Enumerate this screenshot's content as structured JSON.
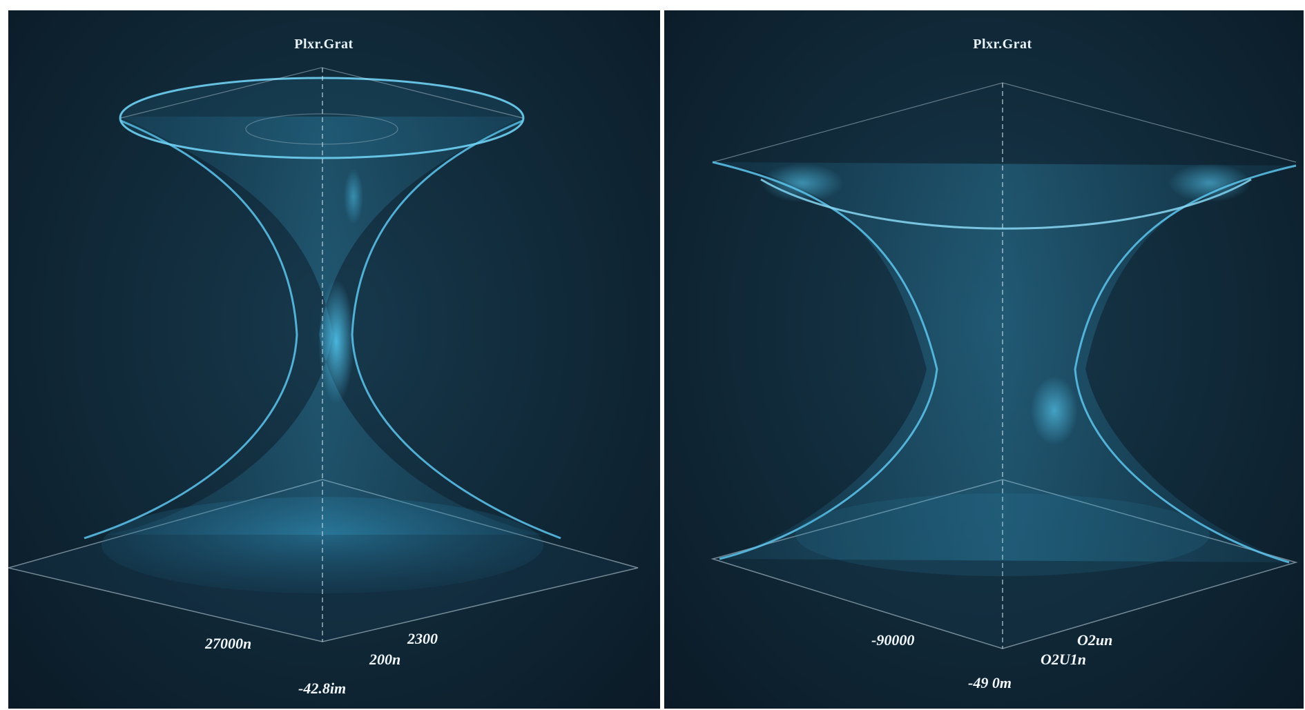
{
  "panels": [
    {
      "title": "Plxr.Grat",
      "axis_labels": [
        "27000n",
        "2300",
        "200n",
        "-42.8im"
      ]
    },
    {
      "title": "Plxr.Grat",
      "axis_labels": [
        "-90000",
        "O2un",
        "O2U1n",
        "-49 0m"
      ]
    }
  ],
  "colors": {
    "background": "#112b3b",
    "surface": "#3d9fc8",
    "axis": "#c9dde6"
  }
}
